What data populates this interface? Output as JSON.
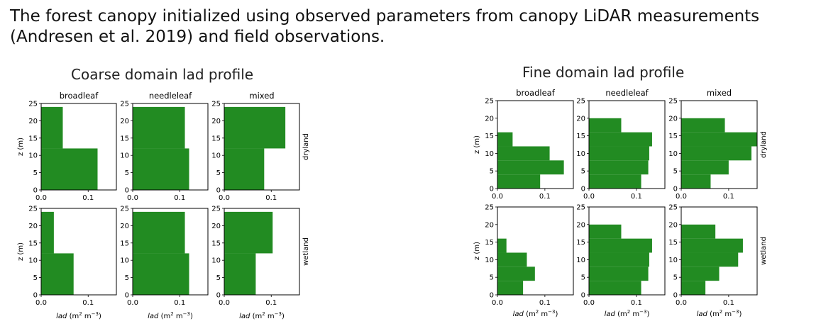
{
  "headline": {
    "line1": "The forest canopy initialized using observed parameters from canopy LiDAR measurements",
    "line2": "(Andresen et al. 2019) and field observations."
  },
  "figures": {
    "coarse": {
      "title": "Coarse domain lad profile"
    },
    "fine": {
      "title": "Fine domain lad profile"
    }
  },
  "labels": {
    "columns": [
      "broadleaf",
      "needleleaf",
      "mixed"
    ],
    "rows": [
      "dryland",
      "wetland"
    ],
    "ylabel": "z (m)",
    "xlabel_italic": "lad",
    "xlabel_unit_pre": " (m",
    "xlabel_sup1": "2",
    "xlabel_unit_mid": " m",
    "xlabel_sup2": "−3",
    "xlabel_unit_post": ")"
  },
  "colors": {
    "bar": "#228b22",
    "axis": "#000000"
  },
  "chart_data": [
    {
      "type": "bar",
      "orientation": "horizontal-step",
      "panel": "coarse",
      "xlim": [
        0,
        0.16
      ],
      "ylim": [
        0,
        25
      ],
      "xticks": [
        "0.0",
        "0.1"
      ],
      "yticks": [
        "0",
        "5",
        "10",
        "15",
        "20",
        "25"
      ],
      "subplots": [
        {
          "row": "dryland",
          "column": "broadleaf",
          "segments": [
            {
              "z0": 0,
              "z1": 12,
              "lad": 0.12
            },
            {
              "z0": 12,
              "z1": 24,
              "lad": 0.046
            }
          ]
        },
        {
          "row": "dryland",
          "column": "needleleaf",
          "segments": [
            {
              "z0": 0,
              "z1": 12,
              "lad": 0.12
            },
            {
              "z0": 12,
              "z1": 24,
              "lad": 0.111
            }
          ]
        },
        {
          "row": "dryland",
          "column": "mixed",
          "segments": [
            {
              "z0": 0,
              "z1": 12,
              "lad": 0.085
            },
            {
              "z0": 12,
              "z1": 24,
              "lad": 0.13
            }
          ]
        },
        {
          "row": "wetland",
          "column": "broadleaf",
          "segments": [
            {
              "z0": 0,
              "z1": 12,
              "lad": 0.069
            },
            {
              "z0": 12,
              "z1": 24,
              "lad": 0.027
            }
          ]
        },
        {
          "row": "wetland",
          "column": "needleleaf",
          "segments": [
            {
              "z0": 0,
              "z1": 12,
              "lad": 0.12
            },
            {
              "z0": 12,
              "z1": 24,
              "lad": 0.111
            }
          ]
        },
        {
          "row": "wetland",
          "column": "mixed",
          "segments": [
            {
              "z0": 0,
              "z1": 12,
              "lad": 0.067
            },
            {
              "z0": 12,
              "z1": 24,
              "lad": 0.103
            }
          ]
        }
      ]
    },
    {
      "type": "bar",
      "orientation": "horizontal-step",
      "panel": "fine",
      "xlim": [
        0,
        0.16
      ],
      "ylim": [
        0,
        25
      ],
      "xticks": [
        "0.0",
        "0.1"
      ],
      "yticks": [
        "0",
        "5",
        "10",
        "15",
        "20",
        "25"
      ],
      "subplots": [
        {
          "row": "dryland",
          "column": "broadleaf",
          "segments": [
            {
              "z0": 0,
              "z1": 4,
              "lad": 0.09
            },
            {
              "z0": 4,
              "z1": 8,
              "lad": 0.14
            },
            {
              "z0": 8,
              "z1": 12,
              "lad": 0.11
            },
            {
              "z0": 12,
              "z1": 16,
              "lad": 0.032
            }
          ]
        },
        {
          "row": "dryland",
          "column": "needleleaf",
          "segments": [
            {
              "z0": 0,
              "z1": 4,
              "lad": 0.11
            },
            {
              "z0": 4,
              "z1": 8,
              "lad": 0.125
            },
            {
              "z0": 8,
              "z1": 12,
              "lad": 0.127
            },
            {
              "z0": 12,
              "z1": 16,
              "lad": 0.133
            },
            {
              "z0": 16,
              "z1": 20,
              "lad": 0.068
            }
          ]
        },
        {
          "row": "dryland",
          "column": "mixed",
          "segments": [
            {
              "z0": 0,
              "z1": 4,
              "lad": 0.062
            },
            {
              "z0": 4,
              "z1": 8,
              "lad": 0.1
            },
            {
              "z0": 8,
              "z1": 12,
              "lad": 0.148
            },
            {
              "z0": 12,
              "z1": 16,
              "lad": 0.16
            },
            {
              "z0": 16,
              "z1": 20,
              "lad": 0.092
            }
          ]
        },
        {
          "row": "wetland",
          "column": "broadleaf",
          "segments": [
            {
              "z0": 0,
              "z1": 4,
              "lad": 0.054
            },
            {
              "z0": 4,
              "z1": 8,
              "lad": 0.079
            },
            {
              "z0": 8,
              "z1": 12,
              "lad": 0.062
            },
            {
              "z0": 12,
              "z1": 16,
              "lad": 0.019
            }
          ]
        },
        {
          "row": "wetland",
          "column": "needleleaf",
          "segments": [
            {
              "z0": 0,
              "z1": 4,
              "lad": 0.11
            },
            {
              "z0": 4,
              "z1": 8,
              "lad": 0.125
            },
            {
              "z0": 8,
              "z1": 12,
              "lad": 0.127
            },
            {
              "z0": 12,
              "z1": 16,
              "lad": 0.133
            },
            {
              "z0": 16,
              "z1": 20,
              "lad": 0.068
            }
          ]
        },
        {
          "row": "wetland",
          "column": "mixed",
          "segments": [
            {
              "z0": 0,
              "z1": 4,
              "lad": 0.051
            },
            {
              "z0": 4,
              "z1": 8,
              "lad": 0.08
            },
            {
              "z0": 8,
              "z1": 12,
              "lad": 0.12
            },
            {
              "z0": 12,
              "z1": 16,
              "lad": 0.13
            },
            {
              "z0": 16,
              "z1": 20,
              "lad": 0.072
            }
          ]
        }
      ]
    }
  ]
}
